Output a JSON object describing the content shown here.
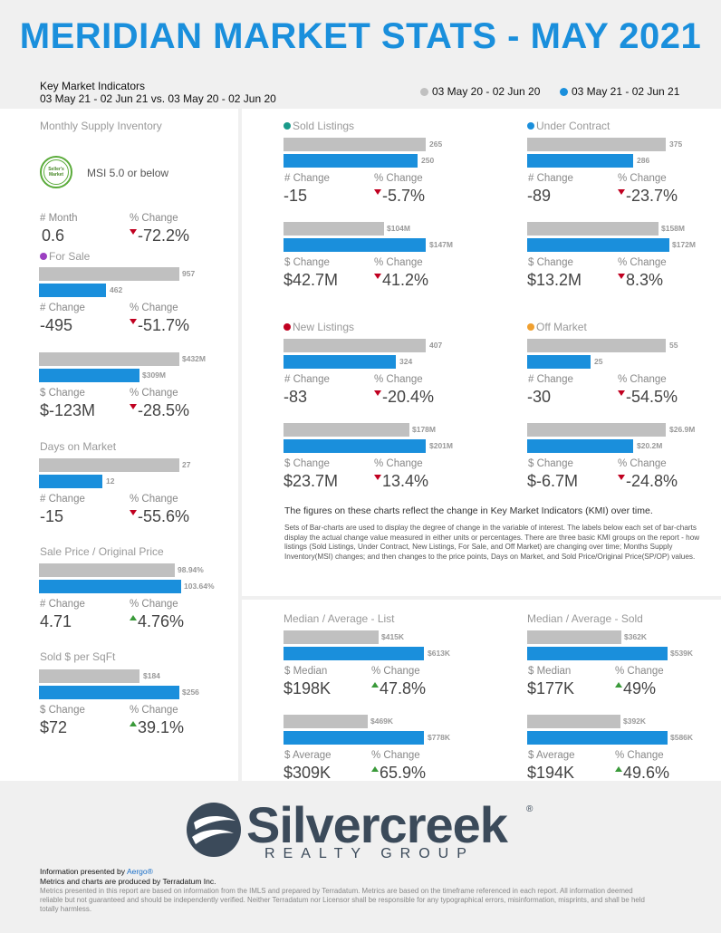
{
  "header": {
    "title": "MERIDIAN MARKET STATS - MAY 2021",
    "kmi_title": "Key Market Indicators",
    "kmi_range": "03 May 21 - 02 Jun 21 vs. 03 May 20 - 02 Jun 20",
    "legend_prev": "03 May 20 - 02 Jun 20",
    "legend_curr": "03 May 21 - 02 Jun 21"
  },
  "colors": {
    "prev": "#c0c0c0",
    "curr": "#1a8fdc",
    "title": "#1a8fdc",
    "down": "#c00020",
    "up": "#3a9a3a"
  },
  "left": {
    "msi": {
      "label": "Monthly Supply Inventory",
      "badge_line1": "Seller's",
      "badge_line2": "Market",
      "badge_text": "MSI 5.0 or below",
      "month_label": "# Month",
      "month_value": "0.6",
      "pct_label": "% Change",
      "pct_value": "-72.2%"
    },
    "for_sale": {
      "label": "For Sale",
      "dot_color": "#9b3fc1",
      "count_prev": 957,
      "count_prev_label": "957",
      "count_curr": 462,
      "count_curr_label": "462",
      "num_change_label": "# Change",
      "num_change": "-495",
      "pct_label": "% Change",
      "pct1": "-51.7%",
      "vol_prev": 432,
      "vol_prev_label": "$432M",
      "vol_curr": 309,
      "vol_curr_label": "$309M",
      "dol_change_label": "$ Change",
      "dol_change": "$-123M",
      "pct2": "-28.5%"
    },
    "dom": {
      "label": "Days on Market",
      "prev": 27,
      "prev_label": "27",
      "curr": 12,
      "curr_label": "12",
      "num_change_label": "# Change",
      "num_change": "-15",
      "pct_label": "% Change",
      "pct": "-55.6%"
    },
    "sp_op": {
      "label": "Sale Price / Original Price",
      "prev": 98.94,
      "prev_label": "98.94%",
      "curr": 103.64,
      "curr_label": "103.64%",
      "num_change_label": "# Change",
      "num_change": "4.71",
      "pct_label": "% Change",
      "pct": "4.76%"
    },
    "sqft": {
      "label": "Sold $ per SqFt",
      "prev": 184,
      "prev_label": "$184",
      "curr": 256,
      "curr_label": "$256",
      "dol_change_label": "$ Change",
      "dol_change": "$72",
      "pct_label": "% Change",
      "pct": "39.1%"
    }
  },
  "kmi": {
    "sold": {
      "label": "Sold Listings",
      "dot_color": "#1a9a8a",
      "count_prev": 265,
      "count_prev_label": "265",
      "count_curr": 250,
      "count_curr_label": "250",
      "num_change_label": "# Change",
      "num_change": "-15",
      "pct_label": "% Change",
      "pct1": "-5.7%",
      "vol_prev": 104,
      "vol_prev_label": "$104M",
      "vol_curr": 147,
      "vol_curr_label": "$147M",
      "dol_change_label": "$ Change",
      "dol_change": "$42.7M",
      "pct2": "41.2%"
    },
    "under_contract": {
      "label": "Under Contract",
      "dot_color": "#1a8fdc",
      "count_prev": 375,
      "count_prev_label": "375",
      "count_curr": 286,
      "count_curr_label": "286",
      "num_change_label": "# Change",
      "num_change": "-89",
      "pct_label": "% Change",
      "pct1": "-23.7%",
      "vol_prev": 158,
      "vol_prev_label": "$158M",
      "vol_curr": 172,
      "vol_curr_label": "$172M",
      "dol_change_label": "$ Change",
      "dol_change": "$13.2M",
      "pct2": "8.3%"
    },
    "new": {
      "label": "New Listings",
      "dot_color": "#c00020",
      "count_prev": 407,
      "count_prev_label": "407",
      "count_curr": 324,
      "count_curr_label": "324",
      "num_change_label": "# Change",
      "num_change": "-83",
      "pct_label": "% Change",
      "pct1": "-20.4%",
      "vol_prev": 178,
      "vol_prev_label": "$178M",
      "vol_curr": 201,
      "vol_curr_label": "$201M",
      "dol_change_label": "$ Change",
      "dol_change": "$23.7M",
      "pct2": "13.4%"
    },
    "off_market": {
      "label": "Off Market",
      "dot_color": "#f0a030",
      "count_prev": 55,
      "count_prev_label": "55",
      "count_curr": 25,
      "count_curr_label": "25",
      "num_change_label": "# Change",
      "num_change": "-30",
      "pct_label": "% Change",
      "pct1": "-54.5%",
      "vol_prev": 26.9,
      "vol_prev_label": "$26.9M",
      "vol_curr": 20.2,
      "vol_curr_label": "$20.2M",
      "dol_change_label": "$ Change",
      "dol_change": "$-6.7M",
      "pct2": "-24.8%"
    }
  },
  "notes": {
    "headline": "The figures on these charts reflect the change in Key Market Indicators (KMI) over time.",
    "body": "Sets of Bar-charts are used to display the degree of change in the variable of interest. The labels below each set of bar-charts display the actual change value measured in either units or percentages. There are three basic KMI groups on the report - how listings (Sold Listings, Under Contract, New Listings, For Sale, and Off Market) are changing over time; Months Supply Inventory(MSI) changes; and then changes to the price points, Days on Market, and Sold Price/Original Price(SP/OP) values."
  },
  "median": {
    "list": {
      "label": "Median / Average - List",
      "med_prev": 415,
      "med_prev_label": "$415K",
      "med_curr": 613,
      "med_curr_label": "$613K",
      "med_change_label": "$ Median",
      "med_change": "$198K",
      "pct_label": "% Change",
      "pct1": "47.8%",
      "avg_prev": 469,
      "avg_prev_label": "$469K",
      "avg_curr": 778,
      "avg_curr_label": "$778K",
      "avg_change_label": "$ Average",
      "avg_change": "$309K",
      "pct2": "65.9%"
    },
    "sold": {
      "label": "Median / Average - Sold",
      "med_prev": 362,
      "med_prev_label": "$362K",
      "med_curr": 539,
      "med_curr_label": "$539K",
      "med_change_label": "$ Median",
      "med_change": "$177K",
      "pct_label": "% Change",
      "pct1": "49%",
      "avg_prev": 392,
      "avg_prev_label": "$392K",
      "avg_curr": 586,
      "avg_curr_label": "$586K",
      "avg_change_label": "$ Average",
      "avg_change": "$194K",
      "pct2": "49.6%"
    }
  },
  "footer": {
    "logo_word": "Silvercreek",
    "logo_reg": "®",
    "logo_sub": "REALTY GROUP",
    "presented_prefix": "Information presented by",
    "presented_link": "Aergo®",
    "produced": "Metrics and charts are produced by Terradatum Inc.",
    "disclaimer": "Metrics presented in this report are based on information from the IMLS and prepared by Terradatum. Metrics are based on the timeframe referenced in each report. All information deemed reliable but not guaranteed and should be independently verified. Neither Terradatum nor Licensor shall be responsible for any typographical errors, misinformation, misprints, and shall be held totally harmless."
  }
}
